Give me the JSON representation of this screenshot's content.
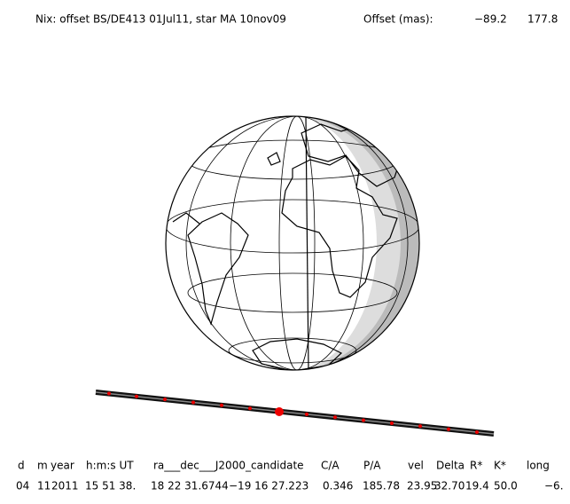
{
  "header": {
    "title": "Nix: offset BS/DE413 01Jul11, star MA 10nov09",
    "offset_label": "Offset (mas):",
    "offset_values": [
      "−89.2",
      "177.8"
    ]
  },
  "table": {
    "columns": [
      "d",
      "m",
      "year",
      "h:m:s UT",
      "ra___dec___J2000_candidate",
      "C/A",
      "P/A",
      "vel",
      "Delta",
      "R*",
      "K*",
      "long"
    ],
    "rows": [
      [
        "04",
        "11",
        "2011",
        "15 51 38.",
        "18 22 31.6744",
        "−19 16  27.223",
        "0.346",
        "185.78",
        "23.95",
        "32.70",
        "19.4",
        "50.0",
        "−6."
      ]
    ]
  }
}
